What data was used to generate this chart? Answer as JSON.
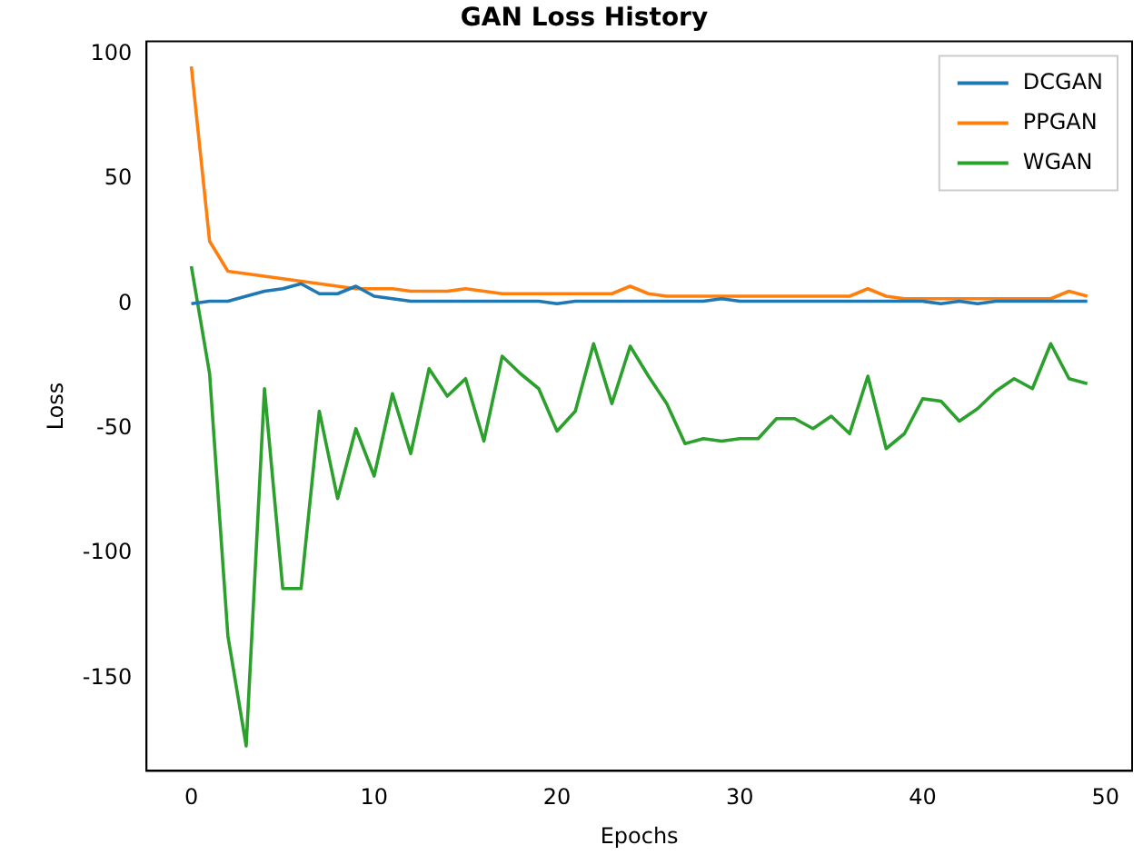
{
  "chart_data": {
    "type": "line",
    "title": "GAN Loss History",
    "xlabel": "Epochs",
    "ylabel": "Loss",
    "x": [
      0,
      1,
      2,
      3,
      4,
      5,
      6,
      7,
      8,
      9,
      10,
      11,
      12,
      13,
      14,
      15,
      16,
      17,
      18,
      19,
      20,
      21,
      22,
      23,
      24,
      25,
      26,
      27,
      28,
      29,
      30,
      31,
      32,
      33,
      34,
      35,
      36,
      37,
      38,
      39,
      40,
      41,
      42,
      43,
      44,
      45,
      46,
      47,
      48,
      49
    ],
    "series": [
      {
        "name": "DCGAN",
        "color": "#1f77b4",
        "values": [
          0,
          1,
          1,
          3,
          5,
          6,
          8,
          4,
          4,
          7,
          3,
          2,
          1,
          1,
          1,
          1,
          1,
          1,
          1,
          1,
          0,
          1,
          1,
          1,
          1,
          1,
          1,
          1,
          1,
          2,
          1,
          1,
          1,
          1,
          1,
          1,
          1,
          1,
          1,
          1,
          1,
          0,
          1,
          0,
          1,
          1,
          1,
          1,
          1,
          1
        ]
      },
      {
        "name": "PPGAN",
        "color": "#ff7f0e",
        "values": [
          95,
          25,
          13,
          12,
          11,
          10,
          9,
          8,
          7,
          6,
          6,
          6,
          5,
          5,
          5,
          6,
          5,
          4,
          4,
          4,
          4,
          4,
          4,
          4,
          7,
          4,
          3,
          3,
          3,
          3,
          3,
          3,
          3,
          3,
          3,
          3,
          3,
          6,
          3,
          2,
          2,
          2,
          2,
          2,
          2,
          2,
          2,
          2,
          5,
          3
        ]
      },
      {
        "name": "WGAN",
        "color": "#2ca02c",
        "values": [
          15,
          -28,
          -133,
          -177,
          -34,
          -114,
          -114,
          -43,
          -78,
          -50,
          -69,
          -36,
          -60,
          -26,
          -37,
          -30,
          -55,
          -21,
          -28,
          -34,
          -51,
          -43,
          -16,
          -40,
          -17,
          -29,
          -40,
          -56,
          -54,
          -55,
          -54,
          -54,
          -46,
          -46,
          -50,
          -45,
          -52,
          -29,
          -58,
          -52,
          -38,
          -39,
          -47,
          -42,
          -35,
          -30,
          -34,
          -16,
          -30,
          -32
        ]
      }
    ],
    "xlim": [
      -2.45,
      51.45
    ],
    "ylim": [
      -187,
      105
    ],
    "xticks": [
      0,
      10,
      20,
      30,
      40,
      50
    ],
    "yticks": [
      -150,
      -100,
      -50,
      0,
      50,
      100
    ],
    "grid": false,
    "legend": "top right",
    "marker": "none",
    "line_style": "solid"
  }
}
